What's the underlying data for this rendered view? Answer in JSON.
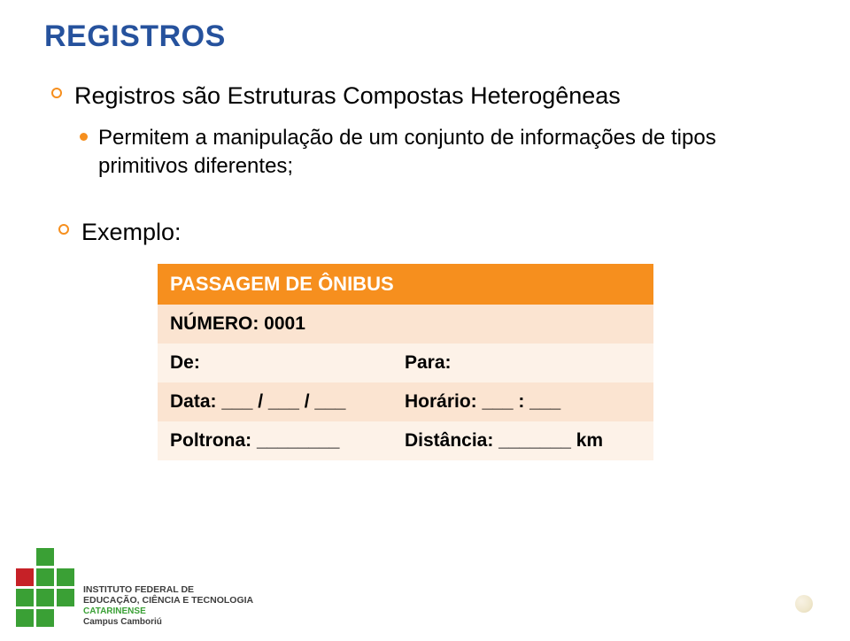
{
  "title": "REGISTROS",
  "bullet1": "Registros são Estruturas Compostas Heterogêneas",
  "bullet2": "Permitem a manipulação de um conjunto de informações de tipos primitivos diferentes;",
  "bullet3": "Exemplo:",
  "table": {
    "header": "PASSAGEM DE ÔNIBUS",
    "rows": [
      [
        "NÚMERO: 0001",
        ""
      ],
      [
        "De:",
        "Para:"
      ],
      [
        "Data: ___ / ___ / ___",
        "Horário: ___ : ___"
      ],
      [
        "Poltrona: ________",
        "Distância: _______ km"
      ]
    ]
  },
  "colors": {
    "title": "#26529d",
    "accent": "#f68f1e",
    "even_row": "#fbe4d1",
    "odd_row": "#fdf2e8"
  },
  "logo": {
    "line1": "INSTITUTO FEDERAL DE",
    "line2": "EDUCAÇÃO, CIÊNCIA E TECNOLOGIA",
    "line3": "CATARINENSE",
    "line4": "Campus Camboriú"
  }
}
